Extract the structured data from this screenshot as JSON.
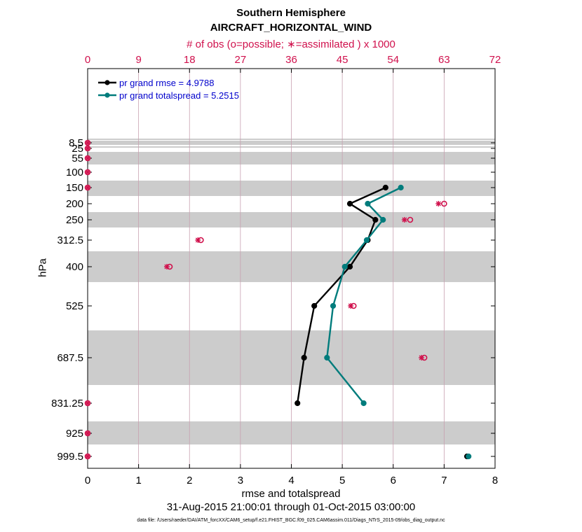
{
  "title": "Southern Hemisphere",
  "subtitle": "AIRCRAFT_HORIZONTAL_WIND",
  "top_axis_label": "# of obs (o=possible; ∗=assimilated ) x 1000",
  "xlabel": "rmse and totalspread",
  "ylabel": "hPa",
  "date_range": "31-Aug-2015 21:00:01 through 01-Oct-2015 03:00:00",
  "data_file": "data file: /Users/raeder/DAI/ATM_forcXX/CAM6_setup/f.e21.FHIST_BGC.f09_025.CAM6assim.011/Diags_NTrS_2015-09/obs_diag_output.nc",
  "colors": {
    "rmse": "#000000",
    "spread": "#007c7c",
    "obs": "#d0104c",
    "band": "#cccccc",
    "grid": "#c8a0b0"
  },
  "chart_data": {
    "type": "line",
    "title": "Southern Hemisphere",
    "subtitle": "AIRCRAFT_HORIZONTAL_WIND",
    "xlabel": "rmse and totalspread",
    "ylabel": "hPa",
    "xlim": [
      0,
      8
    ],
    "x_ticks": [
      0,
      1,
      2,
      3,
      4,
      5,
      6,
      7,
      8
    ],
    "top_axis": {
      "label": "# of obs (o=possible; ∗=assimilated ) x 1000",
      "lim": [
        0,
        72
      ],
      "ticks": [
        0,
        9,
        18,
        27,
        36,
        45,
        54,
        63,
        72
      ]
    },
    "y_ticks": [
      "8.5",
      "25",
      "55",
      "100",
      "150",
      "200",
      "250",
      "312.5",
      "400",
      "525",
      "687.5",
      "831.25",
      "925",
      "999.5"
    ],
    "y_axis": "pressure, increasing downward",
    "grid": true,
    "legend_placement": "top-left",
    "legend": [
      "pr grand rmse = 4.9788",
      "pr grand totalspread = 5.2515"
    ],
    "series": [
      {
        "name": "pr grand rmse = 4.9788",
        "points": [
          [
            5.85,
            "150"
          ],
          [
            5.15,
            "200"
          ],
          [
            5.65,
            "250"
          ],
          [
            5.5,
            "312.5"
          ],
          [
            5.15,
            "400"
          ],
          [
            4.45,
            "525"
          ],
          [
            4.25,
            "687.5"
          ],
          [
            4.12,
            "831.25"
          ],
          [
            7.45,
            "999.5"
          ]
        ]
      },
      {
        "name": "pr grand totalspread = 5.2515",
        "points": [
          [
            6.15,
            "150"
          ],
          [
            5.5,
            "200"
          ],
          [
            5.8,
            "250"
          ],
          [
            5.48,
            "312.5"
          ],
          [
            5.05,
            "400"
          ],
          [
            4.82,
            "525"
          ],
          [
            4.7,
            "687.5"
          ],
          [
            5.42,
            "831.25"
          ],
          [
            7.48,
            "999.5"
          ]
        ]
      }
    ],
    "obs_possible": [
      [
        0,
        "8.5"
      ],
      [
        0,
        "25"
      ],
      [
        0,
        "55"
      ],
      [
        0,
        "100"
      ],
      [
        0,
        "150"
      ],
      [
        63,
        "200"
      ],
      [
        57,
        "250"
      ],
      [
        20,
        "312.5"
      ],
      [
        14.5,
        "400"
      ],
      [
        47,
        "525"
      ],
      [
        59.5,
        "687.5"
      ],
      [
        0,
        "831.25"
      ],
      [
        0,
        "925"
      ],
      [
        0,
        "999.5"
      ]
    ],
    "obs_assimilated": [
      [
        0,
        "8.5"
      ],
      [
        0,
        "25"
      ],
      [
        0,
        "55"
      ],
      [
        0,
        "100"
      ],
      [
        0,
        "150"
      ],
      [
        62,
        "200"
      ],
      [
        56,
        "250"
      ],
      [
        19.5,
        "312.5"
      ],
      [
        14,
        "400"
      ],
      [
        46.5,
        "525"
      ],
      [
        59,
        "687.5"
      ],
      [
        0,
        "831.25"
      ],
      [
        0,
        "925"
      ],
      [
        0,
        "999.5"
      ]
    ]
  }
}
